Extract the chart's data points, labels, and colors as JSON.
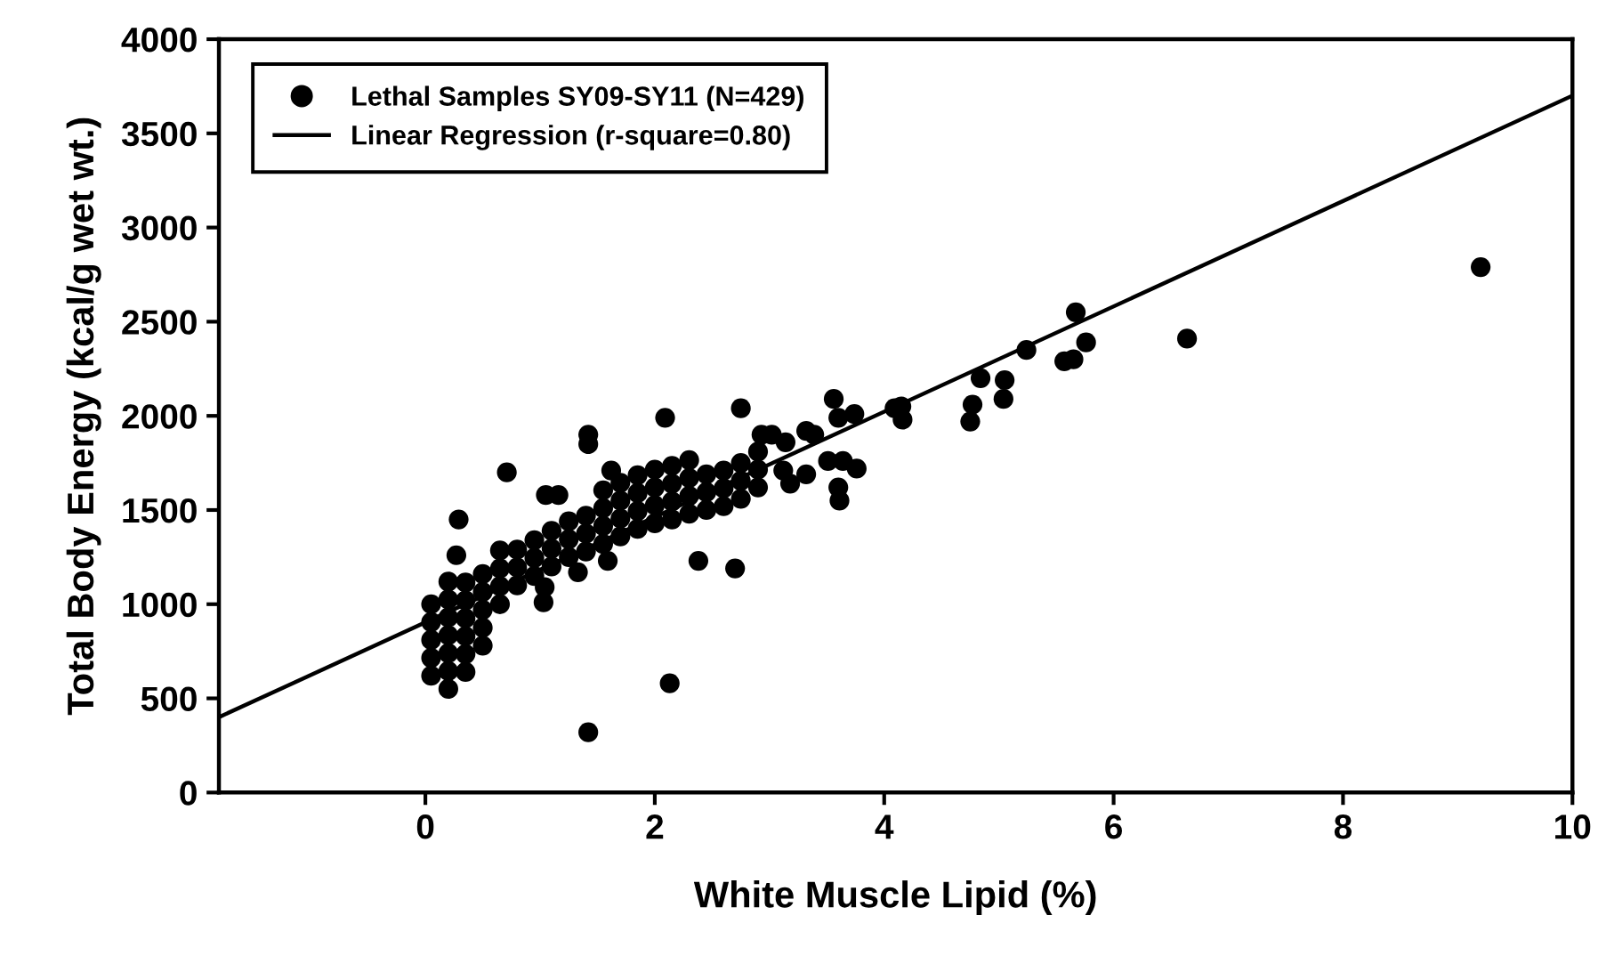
{
  "chart_data": {
    "type": "scatter",
    "xlabel": "White Muscle Lipid (%)",
    "ylabel": "Total Body Energy (kcal/g wet wt.)",
    "xlim": [
      -1.8,
      10
    ],
    "xticks": [
      0,
      2,
      4,
      6,
      8,
      10
    ],
    "ylim": [
      0,
      4000
    ],
    "yticks": [
      0,
      500,
      1000,
      1500,
      2000,
      2500,
      3000,
      3500,
      4000
    ],
    "grid": false,
    "legend": "top left",
    "series": [
      {
        "name": "Lethal Samples SY09-SY11 (N=429)",
        "marker": "circle",
        "color": "#000000",
        "x": [
          9.2,
          6.64,
          5.67,
          5.76,
          5.57,
          5.65,
          5.24,
          5.05,
          5.04,
          4.84,
          4.77,
          4.75,
          4.15,
          4.09,
          4.16,
          3.74,
          3.76,
          3.56,
          3.6,
          3.64,
          3.6,
          3.61,
          3.51,
          3.32,
          3.39,
          3.32,
          3.14,
          3.02,
          2.93,
          3.18,
          3.12,
          2.75,
          2.7,
          2.38,
          2.09,
          2.13,
          1.42,
          1.42,
          1.42,
          0.71,
          0.29,
          0.27,
          1.05,
          1.16,
          1.59,
          1.33,
          1.04,
          1.03,
          1.62,
          0.05,
          0.05,
          0.05,
          0.05,
          0.05,
          0.2,
          0.2,
          0.2,
          0.2,
          0.2,
          0.2,
          0.2,
          0.35,
          0.35,
          0.35,
          0.35,
          0.35,
          0.35,
          0.5,
          0.5,
          0.5,
          0.5,
          0.5,
          0.65,
          0.65,
          0.65,
          0.65,
          0.8,
          0.8,
          0.8,
          0.95,
          0.95,
          0.95,
          1.1,
          1.1,
          1.1,
          1.25,
          1.25,
          1.25,
          1.4,
          1.4,
          1.4,
          1.55,
          1.55,
          1.55,
          1.55,
          1.7,
          1.7,
          1.7,
          1.7,
          1.85,
          1.85,
          1.85,
          1.85,
          2.0,
          2.0,
          2.0,
          2.0,
          2.15,
          2.15,
          2.15,
          2.15,
          2.3,
          2.3,
          2.3,
          2.3,
          2.45,
          2.45,
          2.45,
          2.6,
          2.6,
          2.6,
          2.75,
          2.75,
          2.75,
          2.9,
          2.9,
          2.9
        ],
        "values": [
          2790,
          2410,
          2550,
          2390,
          2290,
          2300,
          2350,
          2190,
          2090,
          2200,
          2060,
          1970,
          2050,
          2040,
          1980,
          2010,
          1720,
          2090,
          1990,
          1760,
          1620,
          1550,
          1760,
          1920,
          1900,
          1690,
          1860,
          1900,
          1900,
          1640,
          1710,
          2040,
          1190,
          1230,
          1990,
          580,
          320,
          1900,
          1850,
          1700,
          1450,
          1260,
          1580,
          1580,
          1230,
          1170,
          1090,
          1010,
          1710,
          620,
          715,
          810,
          905,
          1000,
          550,
          645,
          740,
          835,
          930,
          1025,
          1120,
          640,
          735,
          830,
          925,
          1020,
          1115,
          780,
          875,
          970,
          1065,
          1160,
          1000,
          1095,
          1190,
          1285,
          1100,
          1195,
          1290,
          1150,
          1245,
          1340,
          1200,
          1295,
          1390,
          1250,
          1345,
          1440,
          1280,
          1375,
          1470,
          1320,
          1415,
          1510,
          1605,
          1360,
          1455,
          1550,
          1645,
          1400,
          1495,
          1590,
          1685,
          1430,
          1525,
          1620,
          1715,
          1450,
          1545,
          1640,
          1735,
          1480,
          1575,
          1670,
          1765,
          1500,
          1595,
          1690,
          1520,
          1615,
          1710,
          1560,
          1655,
          1750,
          1620,
          1715,
          1810
        ]
      },
      {
        "name": "Linear Regression (r-square=0.80)",
        "type": "line",
        "line_style": "solid",
        "color": "#000000",
        "x": [
          -1.8,
          10
        ],
        "values": [
          400,
          3700
        ]
      }
    ]
  }
}
